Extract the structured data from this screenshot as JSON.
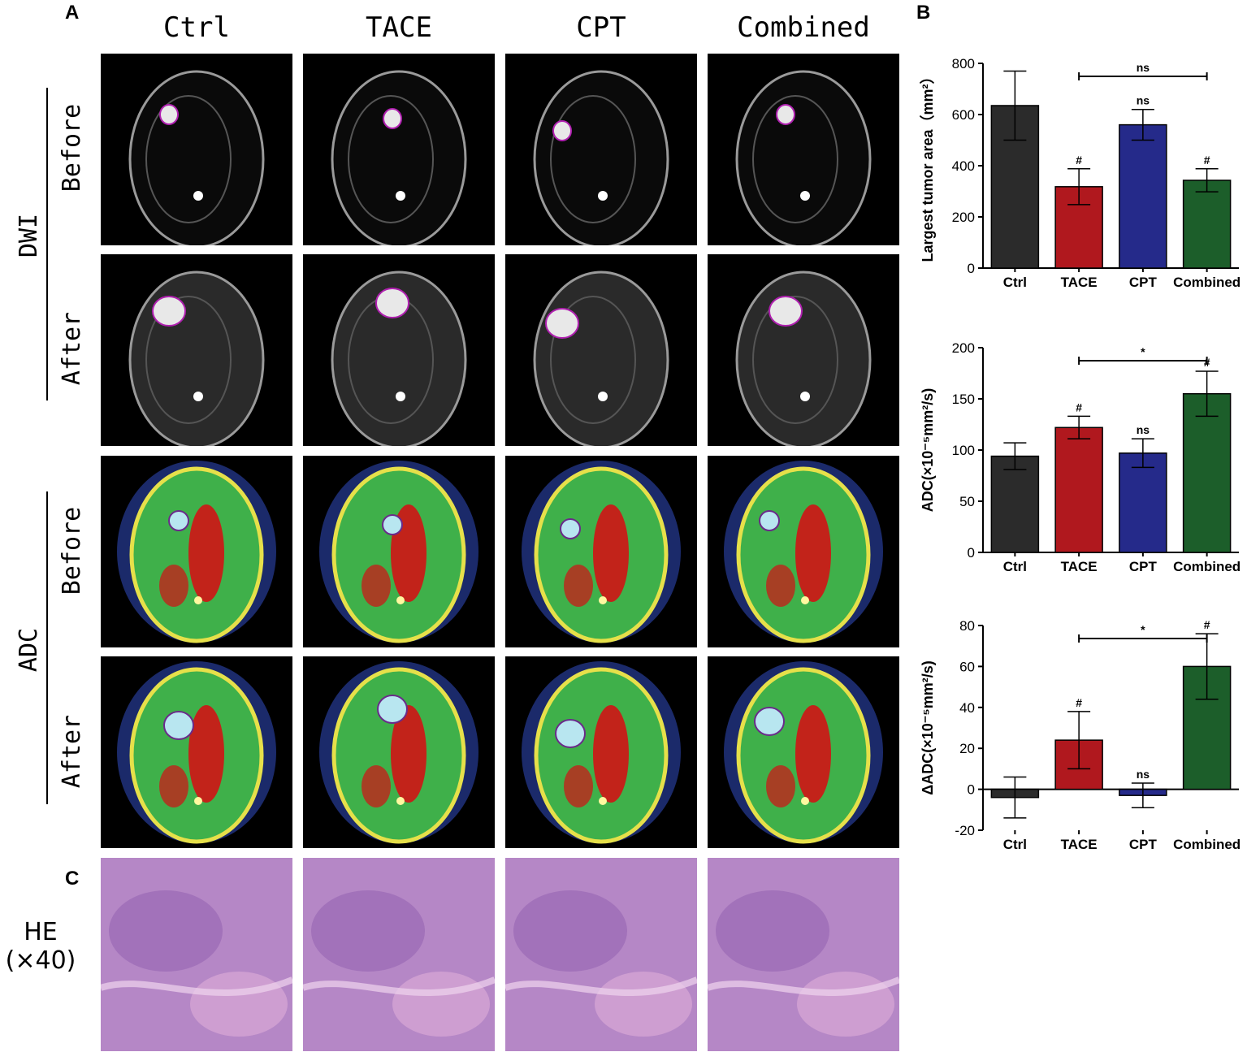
{
  "panels": {
    "a": "A",
    "b": "B",
    "c": "C"
  },
  "columns": [
    "Ctrl",
    "TACE",
    "CPT",
    "Combined"
  ],
  "rows": {
    "before": "Before",
    "after": "After"
  },
  "groups": {
    "dwi": "DWI",
    "adc": "ADC"
  },
  "he": {
    "line1": "HE",
    "line2": "(×40)"
  },
  "colors": {
    "Ctrl": "#2b2b2b",
    "TACE": "#b0181e",
    "CPT": "#252a8a",
    "Combined": "#1c5e2a"
  },
  "chart_data": [
    {
      "type": "bar",
      "categories": [
        "Ctrl",
        "TACE",
        "CPT",
        "Combined"
      ],
      "values": [
        635,
        318,
        560,
        343
      ],
      "errors": [
        135,
        70,
        60,
        45
      ],
      "ylabel": "Largest tumor area（mm²）",
      "ylim": [
        0,
        800
      ],
      "yticks": [
        0,
        200,
        400,
        600,
        800
      ],
      "annotations": [
        "",
        "#",
        "ns",
        "#"
      ],
      "bracket": {
        "from": "TACE",
        "to": "Combined",
        "label": "ns"
      }
    },
    {
      "type": "bar",
      "categories": [
        "Ctrl",
        "TACE",
        "CPT",
        "Combined"
      ],
      "values": [
        94,
        122,
        97,
        155
      ],
      "errors": [
        13,
        11,
        14,
        22
      ],
      "ylabel": "ADC(×10⁻⁵mm²/s)",
      "ylim": [
        0,
        200
      ],
      "yticks": [
        0,
        50,
        100,
        150,
        200
      ],
      "annotations": [
        "",
        "#",
        "ns",
        "#"
      ],
      "bracket": {
        "from": "TACE",
        "to": "Combined",
        "label": "*"
      }
    },
    {
      "type": "bar",
      "categories": [
        "Ctrl",
        "TACE",
        "CPT",
        "Combined"
      ],
      "values": [
        -4,
        24,
        -3,
        60
      ],
      "errors": [
        10,
        14,
        6,
        16
      ],
      "ylabel": "ΔADC(×10⁻⁵mm²/s)",
      "ylim": [
        -20,
        80
      ],
      "yticks": [
        -20,
        0,
        20,
        40,
        60,
        80
      ],
      "annotations": [
        "",
        "#",
        "ns",
        "#"
      ],
      "bracket": {
        "from": "TACE",
        "to": "Combined",
        "label": "*"
      }
    }
  ]
}
